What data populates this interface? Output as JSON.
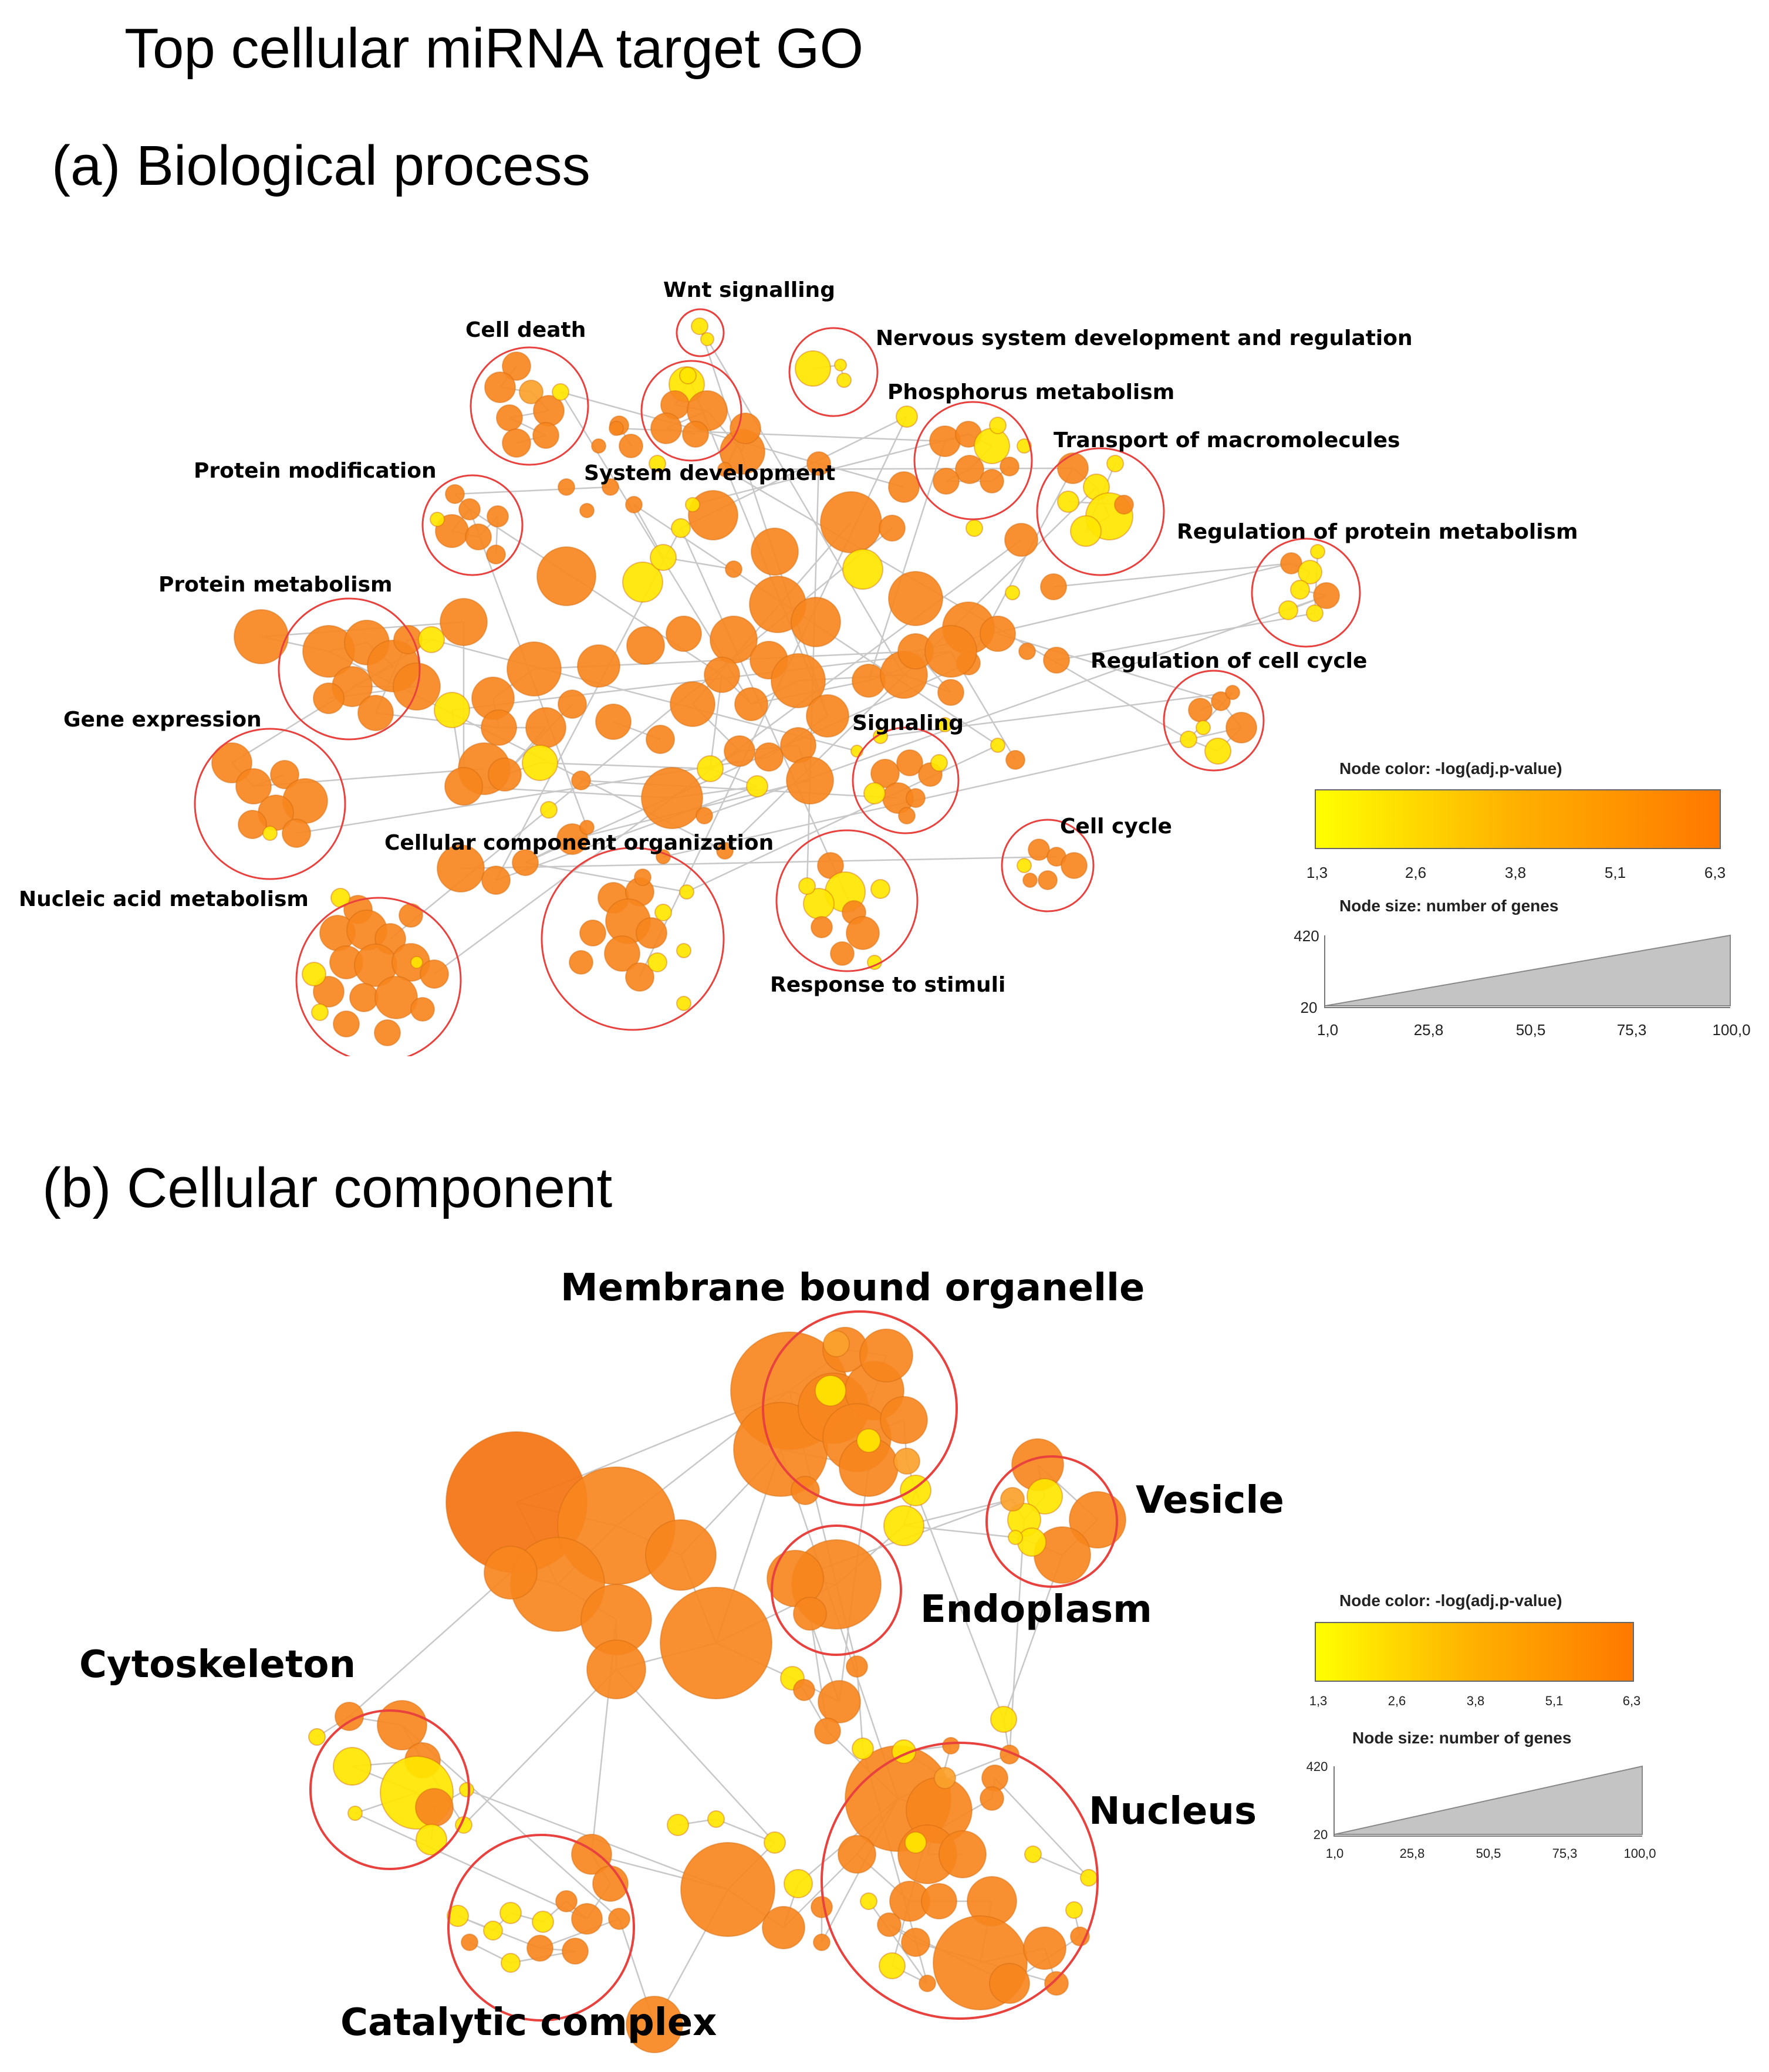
{
  "figure": {
    "title": "Top cellular miRNA target GO"
  },
  "panel_a": {
    "heading": "(a) Biological process",
    "labels": {
      "wnt": "Wnt signalling",
      "cell_death": "Cell death",
      "nervous": "Nervous system development and regulation",
      "phosphorus": "Phosphorus metabolism",
      "transport": "Transport of macromolecules",
      "protein_mod": "Protein modification",
      "system_dev": "System development",
      "reg_protein": "Regulation of protein metabolism",
      "protein_met": "Protein metabolism",
      "reg_cell_cycle": "Regulation of cell cycle",
      "gene_expr": "Gene expression",
      "signaling": "Signaling",
      "cell_cycle": "Cell cycle",
      "cell_comp_org": "Cellular component organization",
      "nucleic": "Nucleic acid metabolism",
      "response": "Response to stimuli"
    },
    "legend": {
      "color_title": "Node color: -log(adj.p-value)",
      "color_ticks": [
        "1,3",
        "2,6",
        "3,8",
        "5,1",
        "6,3"
      ],
      "size_title": "Node size: number of genes",
      "size_y_ticks": [
        "420",
        "20"
      ],
      "size_x_ticks": [
        "1,0",
        "25,8",
        "50,5",
        "75,3",
        "100,0"
      ]
    }
  },
  "panel_b": {
    "heading": "(b) Cellular component",
    "labels": {
      "membrane": "Membrane bound organelle",
      "vesicle": "Vesicle",
      "endoplasm": "Endoplasm",
      "cytoskeleton": "Cytoskeleton",
      "nucleus": "Nucleus",
      "catalytic": "Catalytic complex"
    },
    "legend": {
      "color_title": "Node color: -log(adj.p-value)",
      "color_ticks": [
        "1,3",
        "2,6",
        "3,8",
        "5,1",
        "6,3"
      ],
      "size_title": "Node size: number of genes",
      "size_y_ticks": [
        "420",
        "20"
      ],
      "size_x_ticks": [
        "1,0",
        "25,8",
        "50,5",
        "75,3",
        "100,0"
      ]
    }
  },
  "colors": {
    "orange": "#f7861e",
    "dark_orange": "#f47311",
    "light_orange": "#fba22c",
    "yellow": "#ffe600",
    "circle_red": "#e8423f",
    "edge": "#c8c8c8"
  }
}
